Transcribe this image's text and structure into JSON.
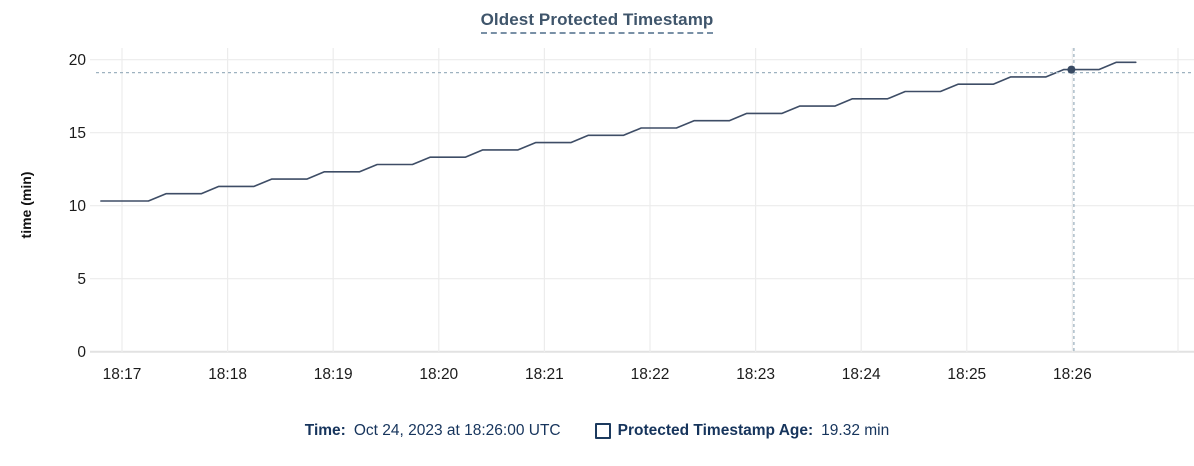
{
  "title": "Oldest Protected Timestamp",
  "legend": {
    "time_label": "Time:",
    "time_value": "Oct 24, 2023 at 18:26:00 UTC",
    "series_label": "Protected Timestamp Age:",
    "series_value": "19.32 min"
  },
  "colors": {
    "series_line": "#3E4D66",
    "dot": "#394A63",
    "crosshair": "#9EB2C0",
    "grid": "#ECECEC",
    "axis_baseline": "#E2E2E2",
    "tick_text": "#1B1B1B",
    "title_text": "#3F556B",
    "legend_text": "#16345C"
  },
  "chart_data": {
    "type": "line",
    "title": "Oldest Protected Timestamp",
    "xlabel": "",
    "ylabel": "time (min)",
    "ylim": [
      0,
      20.7
    ],
    "grid": true,
    "legend_position": "bottom",
    "x_unit": "seconds after 18:17:00 UTC, Oct 24 2023",
    "x_ticks": [
      {
        "t": 0,
        "label": "18:17"
      },
      {
        "t": 60,
        "label": "18:18"
      },
      {
        "t": 120,
        "label": "18:19"
      },
      {
        "t": 180,
        "label": "18:20"
      },
      {
        "t": 240,
        "label": "18:21"
      },
      {
        "t": 300,
        "label": "18:22"
      },
      {
        "t": 360,
        "label": "18:23"
      },
      {
        "t": 420,
        "label": "18:24"
      },
      {
        "t": 480,
        "label": "18:25"
      },
      {
        "t": 540,
        "label": "18:26"
      },
      {
        "t": 600,
        "label": ""
      }
    ],
    "y_ticks": [
      {
        "v": 0,
        "label": "0"
      },
      {
        "v": 5,
        "label": "5"
      },
      {
        "v": 10,
        "label": "10"
      },
      {
        "v": 15,
        "label": "15"
      },
      {
        "v": 20,
        "label": "20"
      }
    ],
    "series": [
      {
        "name": "Protected Timestamp Age",
        "unit": "min",
        "points": [
          [
            -12,
            10.32
          ],
          [
            15,
            10.32
          ],
          [
            25,
            10.82
          ],
          [
            45,
            10.82
          ],
          [
            55,
            11.32
          ],
          [
            75,
            11.32
          ],
          [
            85,
            11.82
          ],
          [
            105,
            11.82
          ],
          [
            115,
            12.32
          ],
          [
            135,
            12.32
          ],
          [
            145,
            12.82
          ],
          [
            165,
            12.82
          ],
          [
            175,
            13.32
          ],
          [
            195,
            13.32
          ],
          [
            205,
            13.82
          ],
          [
            225,
            13.82
          ],
          [
            235,
            14.32
          ],
          [
            255,
            14.32
          ],
          [
            265,
            14.82
          ],
          [
            285,
            14.82
          ],
          [
            295,
            15.32
          ],
          [
            315,
            15.32
          ],
          [
            325,
            15.82
          ],
          [
            345,
            15.82
          ],
          [
            355,
            16.32
          ],
          [
            375,
            16.32
          ],
          [
            385,
            16.82
          ],
          [
            405,
            16.82
          ],
          [
            415,
            17.32
          ],
          [
            435,
            17.32
          ],
          [
            445,
            17.82
          ],
          [
            465,
            17.82
          ],
          [
            475,
            18.32
          ],
          [
            495,
            18.32
          ],
          [
            505,
            18.82
          ],
          [
            525,
            18.82
          ],
          [
            535,
            19.32
          ],
          [
            555,
            19.32
          ],
          [
            565,
            19.82
          ],
          [
            576,
            19.82
          ]
        ]
      }
    ],
    "crosshair": {
      "t": 540,
      "time_label": "Oct 24, 2023 at 18:26:00 UTC",
      "value": 19.32
    }
  }
}
